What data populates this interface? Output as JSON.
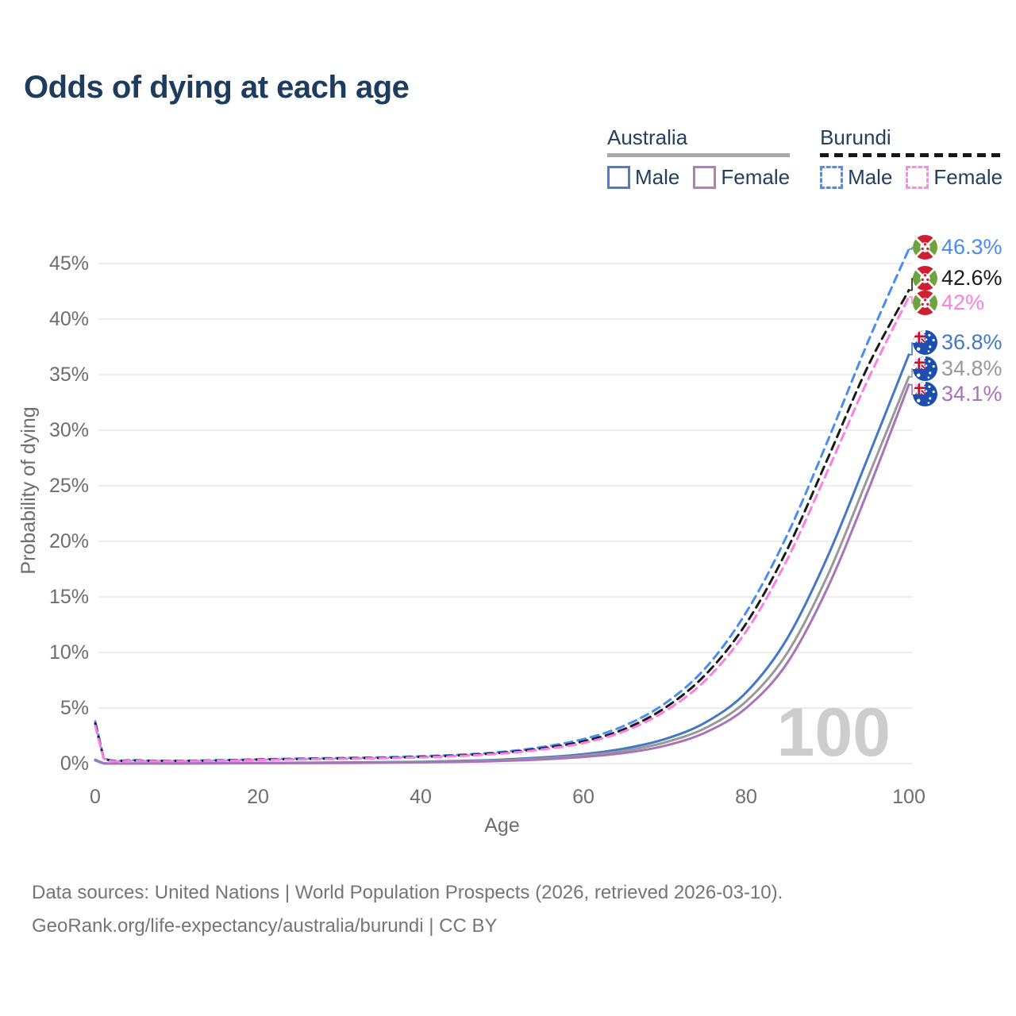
{
  "title": "Odds of dying at each age",
  "legend": {
    "groups": [
      {
        "label": "Australia",
        "line_style": "solid",
        "underline_color": "#a8a8a8",
        "items": [
          {
            "label": "Male",
            "color": "#527cc0"
          },
          {
            "label": "Female",
            "color": "#b87cb8"
          }
        ]
      },
      {
        "label": "Burundi",
        "line_style": "dashed",
        "underline_color": "#161616",
        "items": [
          {
            "label": "Male",
            "color": "#4d8ef5"
          },
          {
            "label": "Female",
            "color": "#fd8ae6"
          }
        ]
      }
    ]
  },
  "watermark": "100",
  "footer": {
    "line1": "Data sources: United Nations | World Population Prospects (2026, retrieved 2026-03-10).",
    "line2": "GeoRank.org/life-expectancy/australia/burundi | CC BY"
  },
  "chart_data": {
    "type": "line",
    "title": "Odds of dying at each age",
    "xlabel": "Age",
    "ylabel": "Probability of dying",
    "xlim": [
      0,
      100
    ],
    "ylim": [
      0,
      47
    ],
    "x_ticks": [
      0,
      20,
      40,
      60,
      80,
      100
    ],
    "y_ticks": [
      0,
      5,
      10,
      15,
      20,
      25,
      30,
      35,
      40,
      45
    ],
    "y_tick_suffix": "%",
    "grid": "horizontal",
    "legend_position": "top-right",
    "x": [
      0,
      1,
      5,
      10,
      15,
      20,
      25,
      30,
      35,
      40,
      45,
      50,
      55,
      60,
      65,
      70,
      75,
      80,
      85,
      90,
      95,
      100
    ],
    "series": [
      {
        "name": "Burundi Male",
        "country": "Burundi",
        "sex": "Male",
        "color": "#4a8cf0",
        "dash": true,
        "flag": "burundi",
        "end_value": 46.3,
        "end_label": "46.3%",
        "values": [
          3.8,
          0.6,
          0.3,
          0.26,
          0.3,
          0.38,
          0.45,
          0.5,
          0.56,
          0.66,
          0.8,
          1.05,
          1.5,
          2.2,
          3.4,
          5.4,
          8.6,
          13.6,
          20.5,
          29.0,
          38.0,
          46.3
        ]
      },
      {
        "name": "Burundi",
        "country": "Burundi",
        "sex": "Both",
        "color": "#1a1a1a",
        "dash": true,
        "flag": "burundi",
        "end_value": 42.6,
        "end_label": "42.6%",
        "values": [
          3.6,
          0.55,
          0.28,
          0.24,
          0.28,
          0.35,
          0.41,
          0.46,
          0.51,
          0.6,
          0.74,
          0.97,
          1.38,
          2.0,
          3.1,
          5.0,
          8.0,
          12.6,
          19.2,
          27.4,
          35.8,
          42.6
        ]
      },
      {
        "name": "Burundi Female",
        "country": "Burundi",
        "sex": "Female",
        "color": "#fd7ee3",
        "dash": true,
        "flag": "burundi",
        "end_value": 42.0,
        "end_label": "42%",
        "values": [
          3.4,
          0.5,
          0.26,
          0.22,
          0.26,
          0.32,
          0.38,
          0.43,
          0.48,
          0.56,
          0.69,
          0.9,
          1.28,
          1.85,
          2.9,
          4.7,
          7.5,
          11.9,
          18.3,
          26.3,
          34.6,
          42.0
        ]
      },
      {
        "name": "Australia Male",
        "country": "Australia",
        "sex": "Male",
        "color": "#4478c4",
        "dash": false,
        "flag": "australia",
        "end_value": 36.8,
        "end_label": "36.8%",
        "values": [
          0.35,
          0.03,
          0.01,
          0.01,
          0.04,
          0.07,
          0.08,
          0.1,
          0.12,
          0.16,
          0.24,
          0.36,
          0.55,
          0.85,
          1.35,
          2.2,
          3.7,
          6.4,
          11.2,
          18.6,
          27.6,
          36.8
        ]
      },
      {
        "name": "Australia",
        "country": "Australia",
        "sex": "Both",
        "color": "#999999",
        "dash": false,
        "flag": "australia",
        "end_value": 34.8,
        "end_label": "34.8%",
        "values": [
          0.3,
          0.025,
          0.01,
          0.01,
          0.03,
          0.05,
          0.06,
          0.08,
          0.1,
          0.14,
          0.2,
          0.3,
          0.46,
          0.72,
          1.15,
          1.9,
          3.2,
          5.6,
          9.9,
          16.9,
          25.8,
          34.8
        ]
      },
      {
        "name": "Australia Female",
        "country": "Australia",
        "sex": "Female",
        "color": "#a873b8",
        "dash": false,
        "flag": "australia",
        "end_value": 34.1,
        "end_label": "34.1%",
        "values": [
          0.28,
          0.02,
          0.01,
          0.01,
          0.02,
          0.035,
          0.045,
          0.06,
          0.08,
          0.11,
          0.16,
          0.24,
          0.38,
          0.6,
          0.95,
          1.6,
          2.8,
          5.0,
          9.0,
          15.8,
          24.6,
          34.1
        ]
      }
    ]
  }
}
